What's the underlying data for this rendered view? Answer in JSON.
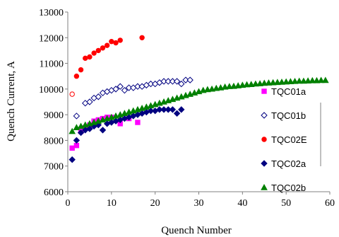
{
  "chart_data": {
    "type": "scatter",
    "title": "",
    "xlabel": "Quench Number",
    "ylabel": "Quench Current, A",
    "xlim": [
      0,
      60
    ],
    "ylim": [
      6000,
      13000
    ],
    "xticks": [
      0,
      10,
      20,
      30,
      40,
      50,
      60
    ],
    "yticks": [
      6000,
      7000,
      8000,
      9000,
      10000,
      11000,
      12000,
      13000
    ],
    "grid": false,
    "legend_position": "right",
    "series": [
      {
        "name": "TQC01a",
        "marker": "square",
        "color": "#ff00ff",
        "fill": true,
        "points": [
          [
            1,
            7700
          ],
          [
            2,
            7800
          ],
          [
            3,
            8350
          ],
          [
            4,
            8500
          ],
          [
            5,
            8600
          ],
          [
            6,
            8750
          ],
          [
            7,
            8800
          ],
          [
            8,
            8850
          ],
          [
            9,
            8900
          ],
          [
            10,
            8900
          ],
          [
            12,
            8650
          ],
          [
            14,
            8850
          ],
          [
            16,
            8700
          ]
        ]
      },
      {
        "name": "TQC01b",
        "marker": "diamond",
        "color": "#000080",
        "fill": false,
        "points": [
          [
            2,
            8950
          ],
          [
            4,
            9450
          ],
          [
            5,
            9500
          ],
          [
            6,
            9650
          ],
          [
            7,
            9700
          ],
          [
            8,
            9850
          ],
          [
            9,
            9900
          ],
          [
            10,
            9950
          ],
          [
            11,
            10000
          ],
          [
            12,
            10100
          ],
          [
            13,
            9950
          ],
          [
            14,
            10050
          ],
          [
            15,
            10050
          ],
          [
            16,
            10100
          ],
          [
            17,
            10100
          ],
          [
            18,
            10150
          ],
          [
            19,
            10200
          ],
          [
            20,
            10200
          ],
          [
            21,
            10250
          ],
          [
            22,
            10300
          ],
          [
            23,
            10300
          ],
          [
            24,
            10300
          ],
          [
            25,
            10300
          ],
          [
            26,
            10200
          ],
          [
            27,
            10350
          ],
          [
            28,
            10350
          ]
        ]
      },
      {
        "name": "TQC02E",
        "marker": "circle",
        "color": "#ff0000",
        "fill": true,
        "points": [
          [
            1,
            9800
          ],
          [
            2,
            10500
          ],
          [
            3,
            10750
          ],
          [
            4,
            11200
          ],
          [
            5,
            11250
          ],
          [
            6,
            11400
          ],
          [
            7,
            11500
          ],
          [
            8,
            11600
          ],
          [
            9,
            11700
          ],
          [
            10,
            11850
          ],
          [
            11,
            11800
          ],
          [
            12,
            11900
          ],
          [
            17,
            12000
          ]
        ],
        "hollow_points": [
          [
            1,
            9800
          ]
        ]
      },
      {
        "name": "TQC02a",
        "marker": "diamond",
        "color": "#000080",
        "fill": true,
        "points": [
          [
            1,
            7250
          ],
          [
            2,
            8000
          ],
          [
            3,
            8300
          ],
          [
            4,
            8400
          ],
          [
            5,
            8450
          ],
          [
            6,
            8550
          ],
          [
            7,
            8600
          ],
          [
            8,
            8400
          ],
          [
            9,
            8650
          ],
          [
            10,
            8700
          ],
          [
            11,
            8750
          ],
          [
            12,
            8800
          ],
          [
            13,
            8850
          ],
          [
            14,
            8900
          ],
          [
            15,
            8950
          ],
          [
            16,
            9000
          ],
          [
            17,
            9050
          ],
          [
            18,
            9100
          ],
          [
            19,
            9150
          ],
          [
            20,
            9150
          ],
          [
            21,
            9200
          ],
          [
            22,
            9200
          ],
          [
            23,
            9200
          ],
          [
            24,
            9200
          ],
          [
            25,
            9050
          ],
          [
            26,
            9200
          ]
        ]
      },
      {
        "name": "TQC02b",
        "marker": "triangle",
        "color": "#008000",
        "fill": true,
        "points": [
          [
            1,
            8350
          ],
          [
            2,
            8500
          ],
          [
            3,
            8550
          ],
          [
            4,
            8600
          ],
          [
            5,
            8650
          ],
          [
            6,
            8700
          ],
          [
            7,
            8750
          ],
          [
            8,
            8800
          ],
          [
            9,
            8850
          ],
          [
            10,
            8900
          ],
          [
            11,
            8950
          ],
          [
            12,
            9000
          ],
          [
            13,
            9050
          ],
          [
            14,
            9100
          ],
          [
            15,
            9150
          ],
          [
            16,
            9200
          ],
          [
            17,
            9250
          ],
          [
            18,
            9300
          ],
          [
            19,
            9350
          ],
          [
            20,
            9400
          ],
          [
            21,
            9450
          ],
          [
            22,
            9500
          ],
          [
            23,
            9550
          ],
          [
            24,
            9600
          ],
          [
            25,
            9650
          ],
          [
            26,
            9700
          ],
          [
            27,
            9750
          ],
          [
            28,
            9800
          ],
          [
            29,
            9850
          ],
          [
            30,
            9900
          ],
          [
            31,
            9950
          ],
          [
            32,
            9980
          ],
          [
            33,
            10000
          ],
          [
            34,
            10030
          ],
          [
            35,
            10050
          ],
          [
            36,
            10080
          ],
          [
            37,
            10100
          ],
          [
            38,
            10110
          ],
          [
            39,
            10130
          ],
          [
            40,
            10150
          ],
          [
            41,
            10170
          ],
          [
            42,
            10180
          ],
          [
            43,
            10200
          ],
          [
            44,
            10210
          ],
          [
            45,
            10230
          ],
          [
            46,
            10240
          ],
          [
            47,
            10250
          ],
          [
            48,
            10260
          ],
          [
            49,
            10270
          ],
          [
            50,
            10280
          ],
          [
            51,
            10290
          ],
          [
            52,
            10300
          ],
          [
            53,
            10310
          ],
          [
            54,
            10310
          ],
          [
            55,
            10320
          ],
          [
            56,
            10330
          ],
          [
            57,
            10330
          ],
          [
            58,
            10340
          ],
          [
            59,
            10340
          ]
        ]
      }
    ]
  }
}
